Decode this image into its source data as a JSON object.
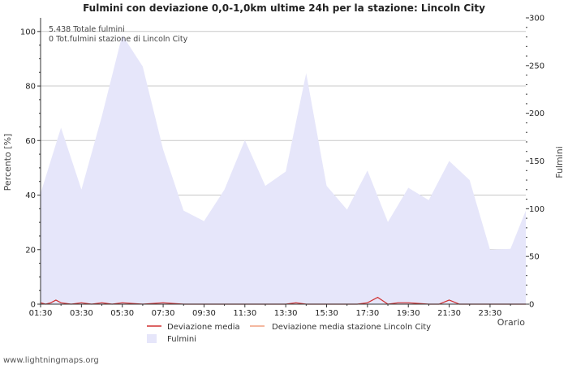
{
  "chart_data": {
    "type": "area",
    "title": "Fulmini con deviazione 0,0-1,0km ultime 24h per la stazione: Lincoln City",
    "xlabel": "Orario",
    "ylabel_left": "Percento   [%]",
    "ylabel_right": "Fulmini",
    "y_left_lim": [
      0,
      105
    ],
    "y_left_ticks": [
      0,
      20,
      40,
      60,
      80,
      100
    ],
    "y_right_lim": [
      0,
      300
    ],
    "y_right_ticks": [
      0,
      50,
      100,
      150,
      200,
      250,
      300
    ],
    "x_lim": [
      0,
      95
    ],
    "x_tick_labels": [
      "01:30",
      "03:30",
      "05:30",
      "07:30",
      "09:30",
      "11:30",
      "13:30",
      "15:30",
      "17:30",
      "19:30",
      "21:30",
      "23:30"
    ],
    "annotations": [
      "5.438 Totale fulmini",
      "0 Tot.fulmini stazione di Lincoln City"
    ],
    "legend": {
      "deviation": "Deviazione media",
      "station_deviation": "Deviazione media stazione Lincoln City",
      "strikes": "Fulmini"
    },
    "colors": {
      "strikes_fill": "#e6e6fa",
      "deviation": "#d03030",
      "station_deviation": "#f0a080",
      "grid": "#c8c8c8"
    },
    "series": [
      {
        "name": "Fulmini",
        "axis": "right",
        "x": [
          0,
          4,
          8,
          12,
          16,
          20,
          24,
          28,
          32,
          36,
          40,
          44,
          48,
          52,
          56,
          60,
          64,
          68,
          72,
          76,
          80,
          84,
          88,
          92,
          95
        ],
        "values": [
          116,
          185,
          120,
          197,
          282,
          249,
          162,
          98,
          87,
          120,
          172,
          124,
          139,
          242,
          124,
          99,
          140,
          86,
          122,
          109,
          150,
          130,
          57,
          58,
          98
        ]
      },
      {
        "name": "Deviazione media",
        "axis": "left",
        "x": [
          0,
          1,
          2,
          3,
          4,
          6,
          8,
          10,
          12,
          14,
          16,
          20,
          24,
          28,
          30,
          32,
          40,
          48,
          50,
          52,
          56,
          60,
          62,
          64,
          66,
          68,
          70,
          72,
          76,
          78,
          80,
          82,
          84,
          86,
          88,
          90,
          92,
          95
        ],
        "values": [
          0.5,
          0,
          0.5,
          1.5,
          0.5,
          0,
          0.5,
          0,
          0.5,
          0,
          0.5,
          0,
          0.5,
          0,
          0,
          0,
          0,
          0,
          0.5,
          0,
          0,
          0,
          0,
          0.5,
          2.5,
          0,
          0.5,
          0.5,
          0,
          0,
          1.5,
          0,
          0,
          0,
          0,
          0,
          0,
          0
        ]
      },
      {
        "name": "Deviazione media stazione Lincoln City",
        "axis": "left",
        "x": [],
        "values": []
      }
    ]
  },
  "footer": "www.lightningmaps.org"
}
